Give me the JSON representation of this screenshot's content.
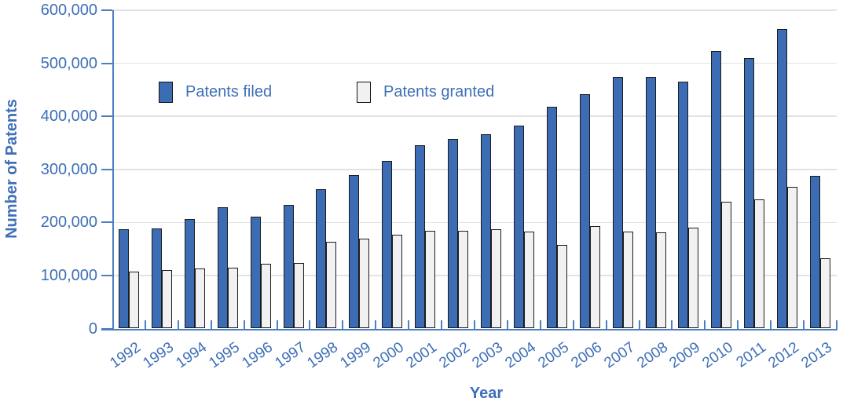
{
  "chart_data": {
    "type": "bar",
    "title": "",
    "xlabel": "Year",
    "ylabel": "Number of Patents",
    "categories": [
      "1992",
      "1993",
      "1994",
      "1995",
      "1996",
      "1997",
      "1998",
      "1999",
      "2000",
      "2001",
      "2002",
      "2003",
      "2004",
      "2005",
      "2006",
      "2007",
      "2008",
      "2009",
      "2010",
      "2011",
      "2012",
      "2013"
    ],
    "series": [
      {
        "name": "Patents filed",
        "color": "#3C6CB4",
        "values": [
          186500,
          189000,
          206000,
          228000,
          211000,
          232500,
          262000,
          290000,
          316000,
          346000,
          357000,
          366500,
          383000,
          418500,
          441500,
          474000,
          474500,
          465000,
          523500,
          509500,
          564500,
          287500
        ]
      },
      {
        "name": "Patents granted",
        "color": "#F1F1F1",
        "values": [
          107500,
          110000,
          113500,
          114000,
          122000,
          124000,
          163500,
          170000,
          176500,
          184000,
          184500,
          187000,
          182500,
          157000,
          193500,
          182000,
          181000,
          190000,
          239500,
          244000,
          267000,
          132500
        ]
      }
    ],
    "ylim": [
      0,
      600000
    ],
    "ytick_interval": 100000,
    "grid": true,
    "legend_position": "inside-top-left",
    "accent_color": "#3E6FB7",
    "axis_color": "#4D7EC2",
    "gridline_color": "#E3E3E3",
    "bar_border_color": "#1C1C1C"
  }
}
